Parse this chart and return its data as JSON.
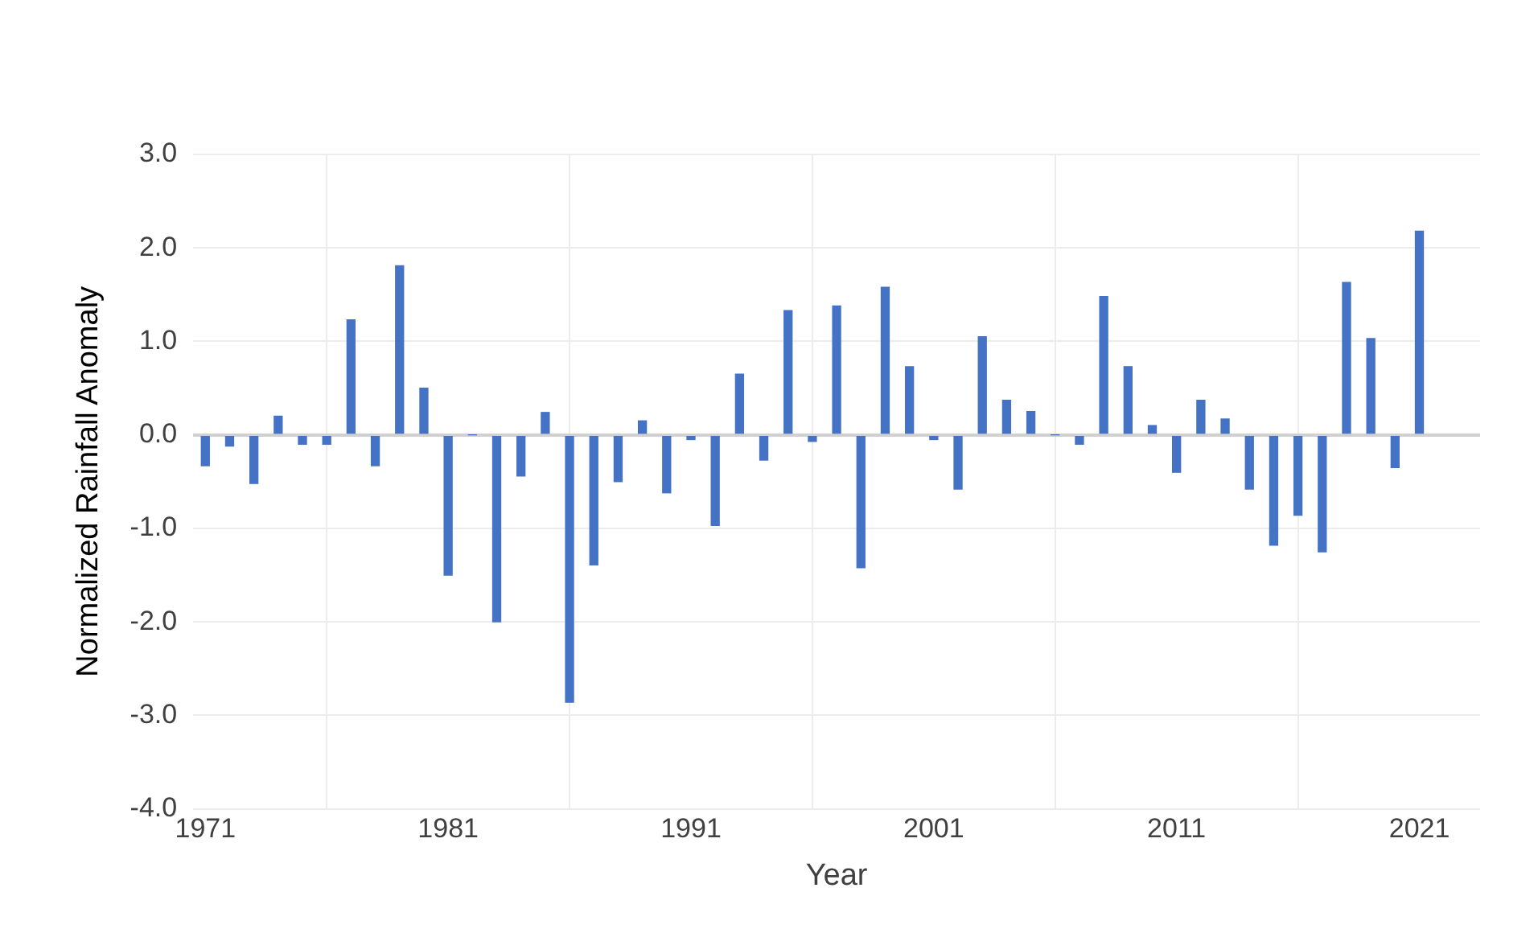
{
  "chart_data": {
    "type": "bar",
    "xlabel": "Year",
    "ylabel": "Normalized Rainfall Anomaly",
    "x": [
      1971,
      1972,
      1973,
      1974,
      1975,
      1976,
      1977,
      1978,
      1979,
      1980,
      1981,
      1982,
      1983,
      1984,
      1985,
      1986,
      1987,
      1988,
      1989,
      1990,
      1991,
      1992,
      1993,
      1994,
      1995,
      1996,
      1997,
      1998,
      1999,
      2000,
      2001,
      2002,
      2003,
      2004,
      2005,
      2006,
      2007,
      2008,
      2009,
      2010,
      2011,
      2012,
      2013,
      2014,
      2015,
      2016,
      2017,
      2018,
      2019,
      2020,
      2021
    ],
    "values": [
      -0.33,
      -0.12,
      -0.52,
      0.2,
      -0.1,
      -0.1,
      1.23,
      -0.33,
      1.81,
      0.5,
      -1.5,
      0,
      -2.0,
      -0.44,
      0.24,
      -2.86,
      -1.39,
      -0.5,
      0.15,
      -0.62,
      -0.05,
      -0.97,
      0.65,
      -0.27,
      1.33,
      -0.07,
      1.38,
      -1.42,
      1.58,
      0.73,
      -0.05,
      -0.58,
      1.05,
      0.37,
      0.25,
      0,
      -0.1,
      1.48,
      0.73,
      0.1,
      -0.4,
      0.37,
      0.17,
      -0.58,
      -1.18,
      -0.86,
      -1.25,
      1.63,
      1.03,
      -0.35,
      2.18
    ],
    "color": "#4472c4",
    "xlim": [
      1970.5,
      2023.5
    ],
    "xticks": [
      1971,
      1981,
      1991,
      2001,
      2011,
      2021
    ],
    "ylim": [
      -4,
      3
    ],
    "yticks": [
      {
        "value": -4,
        "label": "-4.0"
      },
      {
        "value": -3,
        "label": "-3.0"
      },
      {
        "value": -2,
        "label": "-2.0"
      },
      {
        "value": -1,
        "label": "-1.0"
      },
      {
        "value": 0,
        "label": "0.0"
      },
      {
        "value": 1,
        "label": "1.0"
      },
      {
        "value": 2,
        "label": "2.0"
      },
      {
        "value": 3,
        "label": "3.0"
      }
    ],
    "grid": true,
    "legend": false
  }
}
